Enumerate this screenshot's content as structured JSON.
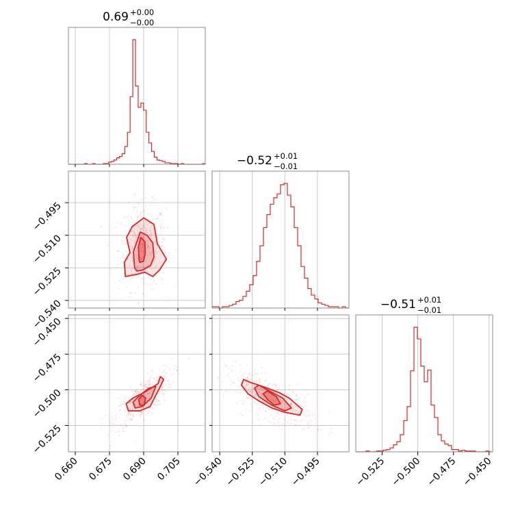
{
  "chart_data": {
    "type": "corner",
    "color": "#d62728",
    "grid": true,
    "parameters": [
      {
        "title_main": "0.69",
        "title_plus": "+0.00",
        "title_minus": "−0.00",
        "range": [
          0.657,
          0.717
        ],
        "ticks": [
          0.66,
          0.675,
          0.69,
          0.705
        ],
        "tick_labels": [
          "0.660",
          "0.675",
          "0.690",
          "0.705"
        ],
        "hist_edges": [
          0.657,
          0.717
        ],
        "hist_counts": [
          0,
          0,
          0,
          0,
          0,
          0,
          1,
          0,
          0,
          1,
          0,
          0,
          0,
          1,
          1,
          3,
          4,
          6,
          9,
          11,
          15,
          25,
          45,
          95,
          175,
          110,
          80,
          86,
          76,
          45,
          30,
          18,
          10,
          6,
          5,
          4,
          2,
          2,
          1,
          1,
          1,
          0,
          1,
          0,
          0,
          0,
          0,
          0,
          0,
          0,
          1
        ]
      },
      {
        "title_main": "−0.52",
        "title_plus": "+0.01",
        "title_minus": "−0.01",
        "range": [
          -0.5435,
          -0.4805
        ],
        "ticks": [
          -0.54,
          -0.525,
          -0.51,
          -0.495
        ],
        "tick_labels": [
          "−0.540",
          "−0.525",
          "−0.510",
          "−0.495"
        ],
        "hist_counts": [
          1,
          1,
          0,
          1,
          1,
          2,
          3,
          5,
          6,
          9,
          13,
          18,
          25,
          36,
          48,
          62,
          72,
          80,
          85,
          88,
          95,
          96,
          87,
          78,
          62,
          48,
          32,
          23,
          15,
          10,
          7,
          4,
          3,
          2,
          1,
          1,
          1,
          0,
          1,
          0
        ]
      },
      {
        "title_main": "−0.51",
        "title_plus": "+0.01",
        "title_minus": "−0.01",
        "range": [
          -0.5435,
          -0.4475
        ],
        "ticks": [
          -0.525,
          -0.5,
          -0.475,
          -0.45
        ],
        "tick_labels": [
          "−0.525",
          "−0.500",
          "−0.475",
          "−0.450"
        ],
        "hist_counts": [
          0,
          0,
          0,
          1,
          0,
          0,
          1,
          1,
          2,
          3,
          5,
          9,
          13,
          22,
          40,
          58,
          104,
          160,
          145,
          110,
          90,
          105,
          60,
          44,
          22,
          14,
          10,
          8,
          3,
          3,
          1,
          2,
          1,
          1,
          1,
          0,
          0,
          0,
          1,
          0
        ]
      }
    ],
    "pair_panels": [
      {
        "x_param": 0,
        "y_param": 1,
        "center": [
          0.6895,
          -0.5155
        ],
        "sigma": [
          0.0035,
          0.0065
        ],
        "rho": 0.05,
        "contour_levels": [
          {
            "dx": [
              -0.0075,
              -0.008,
              -0.0055,
              -0.007,
              -0.0045,
              0.0005,
              0.005,
              0.0065,
              0.0105,
              0.0075,
              0.0045,
              0.001,
              -0.0025
            ],
            "dy": [
              -0.0135,
              -0.007,
              -0.0025,
              0.0045,
              0.0095,
              0.0135,
              0.0105,
              0.0015,
              -0.0055,
              -0.0105,
              -0.0135,
              -0.0115,
              -0.0125
            ]
          },
          {
            "dx": [
              -0.0035,
              -0.004,
              -0.001,
              0.002,
              0.0045,
              0.005,
              0.0035,
              0.0,
              -0.0025
            ],
            "dy": [
              -0.0095,
              -0.002,
              0.007,
              0.0055,
              0.002,
              -0.0045,
              -0.0085,
              -0.0105,
              -0.011
            ]
          },
          {
            "dx": [
              -0.0015,
              -0.0018,
              -0.0008,
              0.001,
              0.0012,
              0.0004,
              -0.0012
            ],
            "dy": [
              -0.006,
              0.0,
              0.0045,
              0.0025,
              -0.003,
              -0.0065,
              -0.007
            ]
          }
        ]
      },
      {
        "x_param": 0,
        "y_param": 2,
        "center": [
          0.6898,
          -0.5063
        ],
        "sigma": [
          0.0042,
          0.0065
        ],
        "rho": 0.75,
        "contour_levels": [
          {
            "dx": [
              -0.0065,
              -0.0075,
              -0.0045,
              0.0005,
              0.0065,
              0.0075,
              0.009,
              0.0065,
              0.003,
              -0.0015
            ],
            "dy": [
              -0.0085,
              -0.0035,
              0.0005,
              0.0045,
              0.0105,
              0.0155,
              0.0135,
              0.0055,
              -0.0055,
              -0.0085
            ]
          },
          {
            "dx": [
              -0.0035,
              -0.0045,
              -0.0015,
              0.0025,
              0.0055,
              0.0035,
              -0.0005
            ],
            "dy": [
              -0.0065,
              -0.0025,
              0.0025,
              0.0075,
              0.0085,
              0.0005,
              -0.0055
            ]
          },
          {
            "dx": [
              -0.0015,
              -0.002,
              -0.0005,
              0.001,
              0.0005
            ],
            "dy": [
              -0.0045,
              -0.0005,
              0.0025,
              0.0005,
              -0.0045
            ]
          }
        ]
      },
      {
        "x_param": 1,
        "y_param": 2,
        "center": [
          -0.5165,
          -0.5063
        ],
        "sigma": [
          0.0068,
          0.0065
        ],
        "rho": -0.7,
        "contour_levels": [
          {
            "dx": [
              -0.0135,
              -0.0125,
              -0.0095,
              -0.0035,
              0.0035,
              0.0085,
              0.0145,
              0.0135,
              0.0065,
              0.0005,
              -0.0055,
              -0.0105
            ],
            "dy": [
              0.0095,
              0.0135,
              0.0115,
              0.0085,
              0.0045,
              0.0005,
              -0.0075,
              -0.0115,
              -0.0095,
              -0.0065,
              -0.0015,
              0.0035
            ]
          },
          {
            "dx": [
              -0.0075,
              -0.0055,
              0.0005,
              0.0055,
              0.0095,
              0.0065,
              0.0005,
              -0.0055
            ],
            "dy": [
              0.0075,
              0.0095,
              0.0045,
              0.0005,
              -0.0065,
              -0.0085,
              -0.0045,
              0.0015
            ]
          },
          {
            "dx": [
              -0.0035,
              -0.0015,
              0.0025,
              0.0045,
              0.0015,
              -0.0015
            ],
            "dy": [
              0.0035,
              0.0055,
              0.0015,
              -0.0035,
              -0.0045,
              -0.0005
            ]
          }
        ]
      }
    ]
  }
}
